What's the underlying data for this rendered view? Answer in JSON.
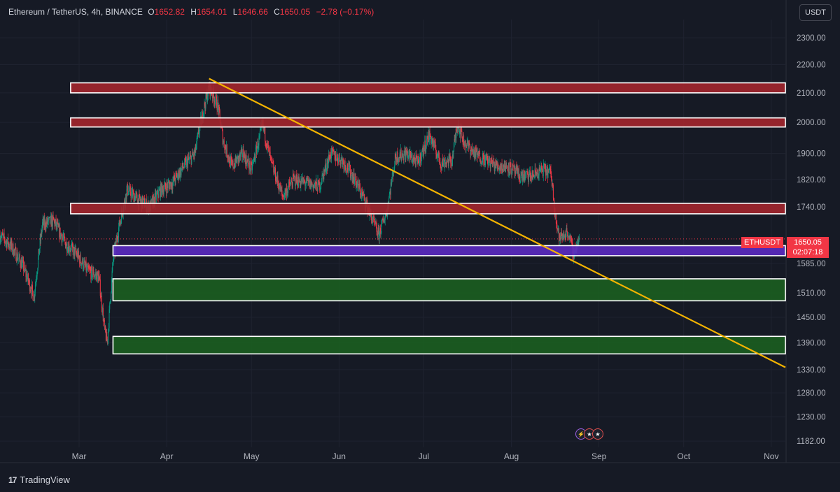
{
  "header": {
    "symbol": "Ethereum / TetherUS, 4h, BINANCE",
    "open_label": "O",
    "open": "1652.82",
    "high_label": "H",
    "high": "1654.01",
    "low_label": "L",
    "low": "1646.66",
    "close_label": "C",
    "close": "1650.05",
    "change": "−2.78 (−0.17%)"
  },
  "currency_button": "USDT",
  "price_label": {
    "symbol": "ETHUSDT",
    "price": "1650.05",
    "countdown": "02:07:18"
  },
  "brand": "TradingView",
  "colors": {
    "background": "#161a25",
    "text": "#d1d4dc",
    "down": "#f23645",
    "up": "#089981",
    "resistance_zone": "#a3262e",
    "support_zone": "#1b5e20",
    "pivot_zone": "#5b2bc2",
    "trendline": "#f5b400",
    "zone_border": "#ffffff"
  },
  "chart_data": {
    "type": "candlestick",
    "title": "Ethereum / TetherUS, 4h, BINANCE",
    "y_scale": "log",
    "ylim": [
      1170,
      2370
    ],
    "x_range": [
      "2023-02-01",
      "2023-11-06"
    ],
    "y_ticks": [
      "2300.00",
      "2200.00",
      "2100.00",
      "2000.00",
      "1900.00",
      "1820.00",
      "1740.00",
      "1585.00",
      "1510.00",
      "1450.00",
      "1390.00",
      "1330.00",
      "1280.00",
      "1230.00",
      "1182.00"
    ],
    "x_ticks": [
      {
        "label": "Mar",
        "date": "2023-03-01"
      },
      {
        "label": "Apr",
        "date": "2023-04-01"
      },
      {
        "label": "May",
        "date": "2023-05-01"
      },
      {
        "label": "Jun",
        "date": "2023-06-01"
      },
      {
        "label": "Jul",
        "date": "2023-07-01"
      },
      {
        "label": "Aug",
        "date": "2023-08-01"
      },
      {
        "label": "Sep",
        "date": "2023-09-01"
      },
      {
        "label": "Oct",
        "date": "2023-10-01"
      },
      {
        "label": "Nov",
        "date": "2023-11-01"
      }
    ],
    "current_price": 1650.05,
    "price_path": [
      [
        "2023-02-01",
        1660
      ],
      [
        "2023-02-05",
        1630
      ],
      [
        "2023-02-09",
        1580
      ],
      [
        "2023-02-13",
        1500
      ],
      [
        "2023-02-16",
        1690
      ],
      [
        "2023-02-20",
        1700
      ],
      [
        "2023-02-24",
        1640
      ],
      [
        "2023-02-28",
        1610
      ],
      [
        "2023-03-04",
        1565
      ],
      [
        "2023-03-08",
        1550
      ],
      [
        "2023-03-10",
        1420
      ],
      [
        "2023-03-11",
        1390
      ],
      [
        "2023-03-13",
        1590
      ],
      [
        "2023-03-15",
        1680
      ],
      [
        "2023-03-18",
        1790
      ],
      [
        "2023-03-22",
        1760
      ],
      [
        "2023-03-26",
        1740
      ],
      [
        "2023-03-30",
        1790
      ],
      [
        "2023-04-03",
        1810
      ],
      [
        "2023-04-07",
        1860
      ],
      [
        "2023-04-11",
        1900
      ],
      [
        "2023-04-13",
        2000
      ],
      [
        "2023-04-16",
        2120
      ],
      [
        "2023-04-19",
        2060
      ],
      [
        "2023-04-21",
        1940
      ],
      [
        "2023-04-24",
        1860
      ],
      [
        "2023-04-28",
        1900
      ],
      [
        "2023-05-01",
        1850
      ],
      [
        "2023-05-05",
        1990
      ],
      [
        "2023-05-08",
        1870
      ],
      [
        "2023-05-12",
        1770
      ],
      [
        "2023-05-16",
        1820
      ],
      [
        "2023-05-20",
        1810
      ],
      [
        "2023-05-25",
        1800
      ],
      [
        "2023-05-29",
        1900
      ],
      [
        "2023-06-02",
        1880
      ],
      [
        "2023-06-06",
        1830
      ],
      [
        "2023-06-10",
        1760
      ],
      [
        "2023-06-15",
        1660
      ],
      [
        "2023-06-18",
        1730
      ],
      [
        "2023-06-21",
        1890
      ],
      [
        "2023-06-25",
        1900
      ],
      [
        "2023-06-29",
        1870
      ],
      [
        "2023-07-03",
        1960
      ],
      [
        "2023-07-07",
        1870
      ],
      [
        "2023-07-11",
        1880
      ],
      [
        "2023-07-13",
        2000
      ],
      [
        "2023-07-15",
        1940
      ],
      [
        "2023-07-19",
        1900
      ],
      [
        "2023-07-23",
        1880
      ],
      [
        "2023-07-27",
        1860
      ],
      [
        "2023-07-31",
        1860
      ],
      [
        "2023-08-04",
        1830
      ],
      [
        "2023-08-08",
        1830
      ],
      [
        "2023-08-12",
        1850
      ],
      [
        "2023-08-15",
        1840
      ],
      [
        "2023-08-17",
        1690
      ],
      [
        "2023-08-18",
        1650
      ],
      [
        "2023-08-21",
        1670
      ],
      [
        "2023-08-23",
        1610
      ],
      [
        "2023-08-25",
        1650
      ]
    ],
    "zones": [
      {
        "type": "resistance",
        "from": 2100,
        "to": 2135,
        "start": "2023-02-26"
      },
      {
        "type": "resistance",
        "from": 1985,
        "to": 2015,
        "start": "2023-02-26"
      },
      {
        "type": "resistance",
        "from": 1720,
        "to": 1750,
        "start": "2023-02-26"
      },
      {
        "type": "pivot",
        "from": 1605,
        "to": 1632,
        "start": "2023-03-13"
      },
      {
        "type": "support",
        "from": 1490,
        "to": 1545,
        "start": "2023-03-13"
      },
      {
        "type": "support",
        "from": 1365,
        "to": 1405,
        "start": "2023-03-13"
      }
    ],
    "trendline": {
      "from": [
        "2023-04-16",
        2150
      ],
      "to": [
        "2023-11-06",
        1335
      ]
    },
    "legend": "none",
    "grid": true
  }
}
